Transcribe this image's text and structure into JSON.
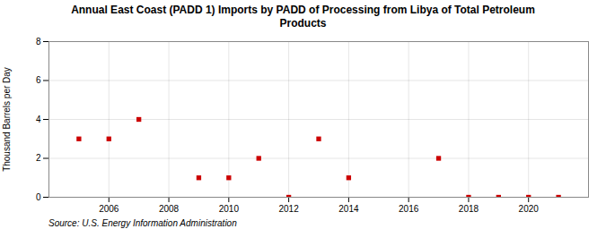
{
  "chart_data": {
    "type": "scatter",
    "title": "Annual East Coast (PADD 1) Imports by PADD of Processing from Libya of Total Petroleum\nProducts",
    "y_label": "Thousand Barrels per Day",
    "annotations": [
      "Source: U.S. Energy Information Administration"
    ],
    "x": [
      2005,
      2006,
      2007,
      2009,
      2010,
      2011,
      2012,
      2013,
      2014,
      2017,
      2018,
      2019,
      2020,
      2021
    ],
    "values": [
      3,
      3,
      4,
      1,
      1,
      2,
      0,
      3,
      1,
      2,
      0,
      0,
      0,
      0
    ],
    "color": "#cc0000",
    "marker": "square",
    "xlim": [
      2004,
      2022
    ],
    "xticks": [
      2006,
      2008,
      2010,
      2012,
      2014,
      2016,
      2018,
      2020
    ],
    "ylim": [
      0,
      8
    ],
    "yticks": [
      0,
      2,
      4,
      6,
      8
    ],
    "grid": true
  }
}
